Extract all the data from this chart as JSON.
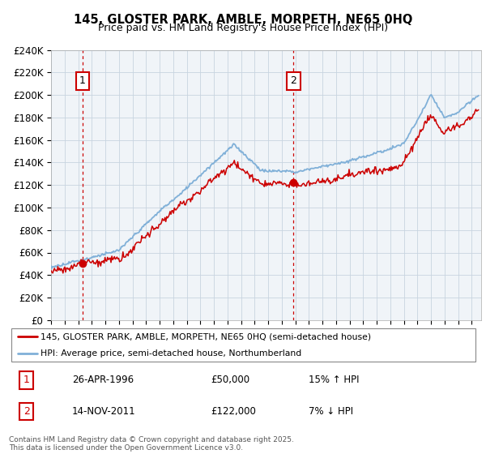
{
  "title": "145, GLOSTER PARK, AMBLE, MORPETH, NE65 0HQ",
  "subtitle": "Price paid vs. HM Land Registry's House Price Index (HPI)",
  "yticks": [
    0,
    20000,
    40000,
    60000,
    80000,
    100000,
    120000,
    140000,
    160000,
    180000,
    200000,
    220000,
    240000
  ],
  "ytick_labels": [
    "£0",
    "£20K",
    "£40K",
    "£60K",
    "£80K",
    "£100K",
    "£120K",
    "£140K",
    "£160K",
    "£180K",
    "£200K",
    "£220K",
    "£240K"
  ],
  "sale1_date": "26-APR-1996",
  "sale1_price": 50000,
  "sale1_hpi": "15% ↑ HPI",
  "sale2_date": "14-NOV-2011",
  "sale2_price": 122000,
  "sale2_hpi": "7% ↓ HPI",
  "legend_line1": "145, GLOSTER PARK, AMBLE, MORPETH, NE65 0HQ (semi-detached house)",
  "legend_line2": "HPI: Average price, semi-detached house, Northumberland",
  "footer": "Contains HM Land Registry data © Crown copyright and database right 2025.\nThis data is licensed under the Open Government Licence v3.0.",
  "line_color_price": "#cc0000",
  "line_color_hpi": "#80b0d8",
  "chart_bg": "#f0f4f8",
  "grid_color": "#c8d4e0",
  "sale1_year": 1996.32,
  "sale2_year": 2011.87,
  "xlim": [
    1994.0,
    2025.7
  ],
  "ylim": [
    0,
    240000
  ]
}
